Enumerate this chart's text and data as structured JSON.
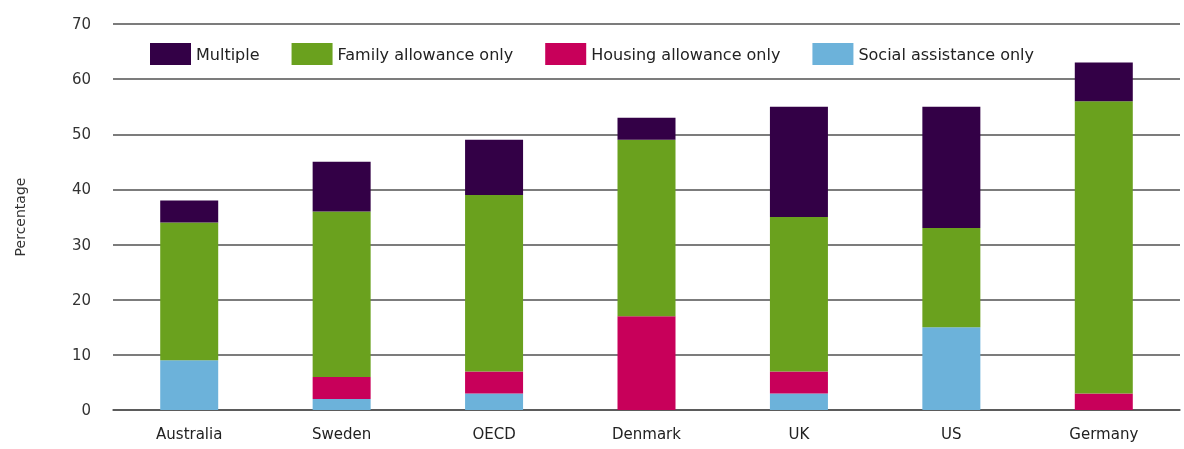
{
  "chart_data": {
    "type": "bar",
    "stacked": true,
    "ylabel": "Percentage",
    "categories": [
      "Australia",
      "Sweden",
      "OECD",
      "Denmark",
      "UK",
      "US",
      "Germany"
    ],
    "series": [
      {
        "name": "Social assistance only",
        "color": "#6cb2da",
        "values": [
          9,
          2,
          3,
          0,
          3,
          15,
          0
        ]
      },
      {
        "name": "Housing allowance only",
        "color": "#c8005a",
        "values": [
          0,
          4,
          4,
          17,
          4,
          0,
          3
        ]
      },
      {
        "name": "Family allowance only",
        "color": "#6aa11e",
        "values": [
          25,
          30,
          32,
          32,
          28,
          18,
          53
        ]
      },
      {
        "name": "Multiple",
        "color": "#330046",
        "values": [
          4,
          9,
          10,
          4,
          20,
          22,
          7
        ]
      }
    ],
    "ylim": [
      0,
      70
    ],
    "yticks": [
      0,
      10,
      20,
      30,
      40,
      50,
      60,
      70
    ],
    "grid": "y",
    "legend": "top left"
  }
}
